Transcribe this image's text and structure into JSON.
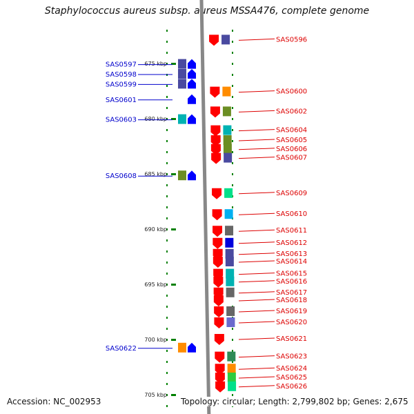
{
  "title": "Staphylococcus aureus subsp. aureus MSSA476, complete genome",
  "footer": {
    "accession": "Accession: NC_002953",
    "topology": "Topology: circular; Length: 2,799,802 bp; Genes: 2,675"
  },
  "scale": {
    "ticks": [
      {
        "label": "675 kbp",
        "kbp": 675
      },
      {
        "label": "680 kbp",
        "kbp": 680
      },
      {
        "label": "685 kbp",
        "kbp": 685
      },
      {
        "label": "690 kbp",
        "kbp": 690
      },
      {
        "label": "695 kbp",
        "kbp": 695
      },
      {
        "label": "700 kbp",
        "kbp": 700
      },
      {
        "label": "705 kbp",
        "kbp": 705
      }
    ]
  },
  "colors": {
    "forward_label": "#0000cc",
    "reverse_label": "#dd0000",
    "strand_forward": "#0000ff",
    "strand_reverse": "#ff0000",
    "backbone": "#888888",
    "tick": "#008000"
  },
  "genes": {
    "forward": [
      {
        "label": "SAS0597",
        "kbp": 675.1,
        "cog": "#4a4aa0"
      },
      {
        "label": "SAS0598",
        "kbp": 676.0,
        "cog": "#4a4aa0"
      },
      {
        "label": "SAS0599",
        "kbp": 676.9,
        "cog": "#4a4aa0"
      },
      {
        "label": "SAS0601",
        "kbp": 678.3,
        "cog": ""
      },
      {
        "label": "SAS0603",
        "kbp": 680.1,
        "cog": "#00b2b2"
      },
      {
        "label": "SAS0608",
        "kbp": 685.2,
        "cog": "#6b8e23"
      },
      {
        "label": "SAS0622",
        "kbp": 700.8,
        "cog": "#ff8c00"
      }
    ],
    "reverse": [
      {
        "label": "SAS0596",
        "kbp": 672.9,
        "cog": "#4a4aa0"
      },
      {
        "label": "SAS0600",
        "kbp": 677.6,
        "cog": "#ff8c00"
      },
      {
        "label": "SAS0602",
        "kbp": 679.4,
        "cog": "#6b8e23"
      },
      {
        "label": "SAS0604",
        "kbp": 681.1,
        "cog": "#00b2b2"
      },
      {
        "label": "SAS0605",
        "kbp": 682.0,
        "cog": "#6b8e23"
      },
      {
        "label": "SAS0606",
        "kbp": 682.8,
        "cog": "#6b8e23"
      },
      {
        "label": "SAS0607",
        "kbp": 683.6,
        "cog": "#4a4aa0"
      },
      {
        "label": "SAS0609",
        "kbp": 686.8,
        "cog": "#00e08a"
      },
      {
        "label": "SAS0610",
        "kbp": 688.7,
        "cog": "#00b0f0"
      },
      {
        "label": "SAS0611",
        "kbp": 690.2,
        "cog": "#666666"
      },
      {
        "label": "SAS0612",
        "kbp": 691.3,
        "cog": "#0000dd"
      },
      {
        "label": "SAS0613",
        "kbp": 692.3,
        "cog": "#4a4aa0"
      },
      {
        "label": "SAS0614",
        "kbp": 693.0,
        "cog": "#4a4aa0"
      },
      {
        "label": "SAS0615",
        "kbp": 694.1,
        "cog": "#00b2b2"
      },
      {
        "label": "SAS0616",
        "kbp": 694.8,
        "cog": "#00b2b2"
      },
      {
        "label": "SAS0617",
        "kbp": 695.8,
        "cog": "#666666"
      },
      {
        "label": "SAS0618",
        "kbp": 696.5,
        "cog": ""
      },
      {
        "label": "SAS0619",
        "kbp": 697.5,
        "cog": "#666666"
      },
      {
        "label": "SAS0620",
        "kbp": 698.5,
        "cog": "#6a6acd"
      },
      {
        "label": "SAS0621",
        "kbp": 700.0,
        "cog": ""
      },
      {
        "label": "SAS0623",
        "kbp": 701.6,
        "cog": "#2e8b57"
      },
      {
        "label": "SAS0624",
        "kbp": 702.7,
        "cog": "#ff8c00"
      },
      {
        "label": "SAS0625",
        "kbp": 703.5,
        "cog": "#2ecc40"
      },
      {
        "label": "SAS0626",
        "kbp": 704.3,
        "cog": "#00e08a"
      }
    ]
  }
}
